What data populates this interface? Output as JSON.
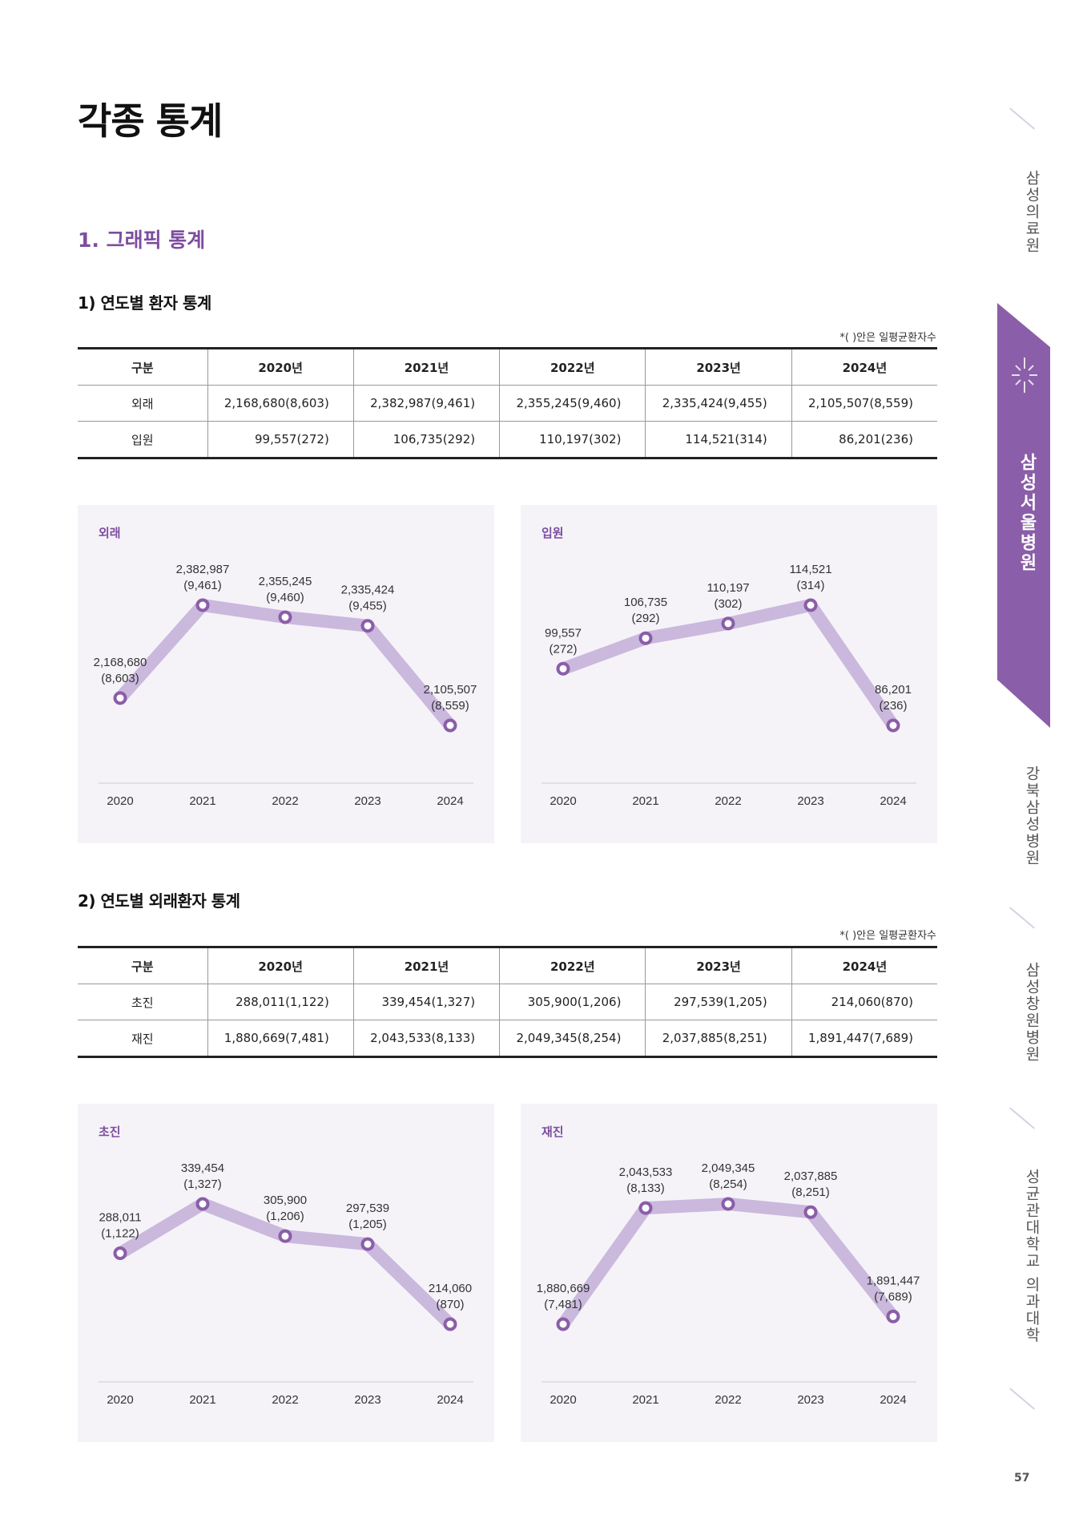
{
  "page": {
    "title": "각종 통계",
    "number": "57"
  },
  "section": {
    "title": "1. 그래픽 통계"
  },
  "table1": {
    "title": "1) 연도별 환자 통계",
    "note": "*( )안은 일평균환자수",
    "header": [
      "구분",
      "2020년",
      "2021년",
      "2022년",
      "2023년",
      "2024년"
    ],
    "rows": [
      {
        "label": "외래",
        "cells": [
          "2,168,680(8,603)",
          "2,382,987(9,461)",
          "2,355,245(9,460)",
          "2,335,424(9,455)",
          "2,105,507(8,559)"
        ]
      },
      {
        "label": "입원",
        "cells": [
          "99,557(272)",
          "106,735(292)",
          "110,197(302)",
          "114,521(314)",
          "86,201(236)"
        ]
      }
    ]
  },
  "table2": {
    "title": "2) 연도별 외래환자 통계",
    "note": "*( )안은 일평균환자수",
    "header": [
      "구분",
      "2020년",
      "2021년",
      "2022년",
      "2023년",
      "2024년"
    ],
    "rows": [
      {
        "label": "초진",
        "cells": [
          "288,011(1,122)",
          "339,454(1,327)",
          "305,900(1,206)",
          "297,539(1,205)",
          "214,060(870)"
        ]
      },
      {
        "label": "재진",
        "cells": [
          "1,880,669(7,481)",
          "2,043,533(8,133)",
          "2,049,345(8,254)",
          "2,037,885(8,251)",
          "1,891,447(7,689)"
        ]
      }
    ]
  },
  "chart_data": [
    {
      "type": "line",
      "title": "외래",
      "x": [
        "2020",
        "2021",
        "2022",
        "2023",
        "2024"
      ],
      "values": [
        2168680,
        2382987,
        2355245,
        2335424,
        2105507
      ],
      "labels": [
        [
          "2,168,680",
          "(8,603)"
        ],
        [
          "2,382,987",
          "(9,461)"
        ],
        [
          "2,355,245",
          "(9,460)"
        ],
        [
          "2,335,424",
          "(9,455)"
        ],
        [
          "2,105,507",
          "(8,559)"
        ]
      ],
      "label_side": [
        "above",
        "above",
        "above",
        "above",
        "above"
      ],
      "grid": false
    },
    {
      "type": "line",
      "title": "입원",
      "x": [
        "2020",
        "2021",
        "2022",
        "2023",
        "2024"
      ],
      "values": [
        99557,
        106735,
        110197,
        114521,
        86201
      ],
      "labels": [
        [
          "99,557",
          "(272)"
        ],
        [
          "106,735",
          "(292)"
        ],
        [
          "110,197",
          "(302)"
        ],
        [
          "114,521",
          "(314)"
        ],
        [
          "86,201",
          "(236)"
        ]
      ],
      "label_side": [
        "above",
        "above",
        "above",
        "above",
        "above"
      ],
      "grid": false
    },
    {
      "type": "line",
      "title": "초진",
      "x": [
        "2020",
        "2021",
        "2022",
        "2023",
        "2024"
      ],
      "values": [
        288011,
        339454,
        305900,
        297539,
        214060
      ],
      "labels": [
        [
          "288,011",
          "(1,122)"
        ],
        [
          "339,454",
          "(1,327)"
        ],
        [
          "305,900",
          "(1,206)"
        ],
        [
          "297,539",
          "(1,205)"
        ],
        [
          "214,060",
          "(870)"
        ]
      ],
      "label_side": [
        "above",
        "above",
        "above",
        "above",
        "above"
      ],
      "grid": false
    },
    {
      "type": "line",
      "title": "재진",
      "x": [
        "2020",
        "2021",
        "2022",
        "2023",
        "2024"
      ],
      "values": [
        1880669,
        2043533,
        2049345,
        2037885,
        1891447
      ],
      "labels": [
        [
          "1,880,669",
          "(7,481)"
        ],
        [
          "2,043,533",
          "(8,133)"
        ],
        [
          "2,049,345",
          "(8,254)"
        ],
        [
          "2,037,885",
          "(8,251)"
        ],
        [
          "1,891,447",
          "(7,689)"
        ]
      ],
      "label_side": [
        "above",
        "above",
        "above",
        "above",
        "above"
      ],
      "grid": false
    }
  ],
  "colors": {
    "accent": "#7d4d9f",
    "line": "#cbb8dd",
    "marker": "#8a5ea8",
    "panel": "#f5f3f8"
  },
  "side_nav": {
    "items": [
      "삼성의료원",
      "삼성서울병원",
      "강북삼성병원",
      "삼성창원병원",
      "성균관대학교 의과대학"
    ],
    "active": "삼성서울병원"
  }
}
